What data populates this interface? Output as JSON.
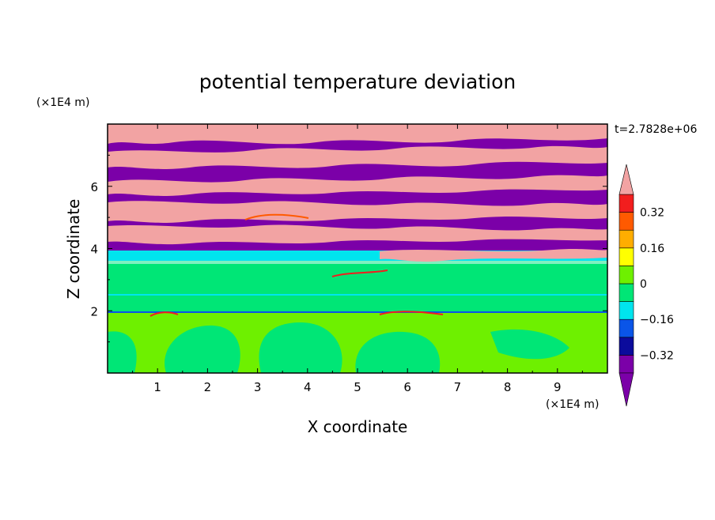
{
  "chart_data": {
    "type": "heatmap",
    "title": "potential temperature deviation",
    "xlabel": "X coordinate",
    "ylabel": "Z coordinate",
    "x_unit": "(×1E4 m)",
    "y_unit": "(×1E4 m)",
    "time_label": "t=2.7828e+06",
    "xlim": [
      0,
      10
    ],
    "ylim": [
      0,
      8
    ],
    "x_ticks": [
      "1",
      "2",
      "3",
      "4",
      "5",
      "6",
      "7",
      "8",
      "9"
    ],
    "y_ticks": [
      "2",
      "4",
      "6"
    ],
    "colorbar": {
      "levels": [
        -0.4,
        -0.32,
        -0.24,
        -0.16,
        -0.08,
        0,
        0.08,
        0.16,
        0.24,
        0.32,
        0.4
      ],
      "tick_labels": [
        "0.32",
        "0.16",
        "0",
        "−0.16",
        "−0.32"
      ],
      "tick_values": [
        0.32,
        0.16,
        0,
        -0.16,
        -0.32
      ],
      "colors_low_to_high": [
        "#7b00a8",
        "#0b0b9c",
        "#0a55e8",
        "#00e5ee",
        "#00e676",
        "#6ef000",
        "#ffff00",
        "#ffad00",
        "#ff5a00",
        "#f21e1e"
      ],
      "over_color": "#f2a3a3",
      "under_color": "#7b00a8",
      "extend": "both"
    },
    "field_description_bands": [
      {
        "z_range": [
          4.1,
          8.0
        ],
        "pattern": "alternating purple/pink layers",
        "values": [
          -0.4,
          0.4
        ]
      },
      {
        "z_range": [
          3.5,
          4.1
        ],
        "pattern": "cyan/blue transition",
        "values": [
          -0.16,
          -0.12
        ]
      },
      {
        "z_range": [
          2.0,
          3.5
        ],
        "pattern": "mostly green with thin cyan/red lines",
        "values": [
          0.0,
          0.04
        ]
      },
      {
        "z_range": [
          0.0,
          2.0
        ],
        "pattern": "green/yellow-green blobs",
        "values": [
          0.0,
          0.08
        ]
      }
    ]
  }
}
